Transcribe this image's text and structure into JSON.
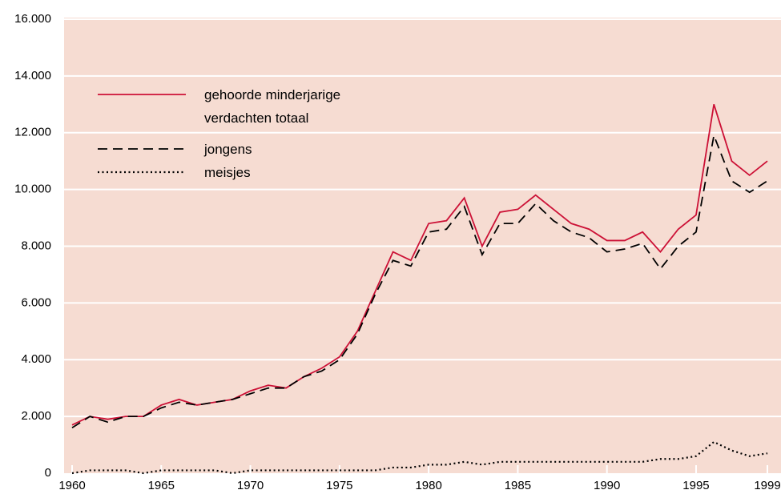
{
  "chart_data": {
    "type": "line",
    "x": [
      1960,
      1961,
      1962,
      1963,
      1964,
      1965,
      1966,
      1967,
      1968,
      1969,
      1970,
      1971,
      1972,
      1973,
      1974,
      1975,
      1976,
      1977,
      1978,
      1979,
      1980,
      1981,
      1982,
      1983,
      1984,
      1985,
      1986,
      1987,
      1988,
      1989,
      1990,
      1991,
      1992,
      1993,
      1994,
      1995,
      1996,
      1997,
      1998,
      1999
    ],
    "series": [
      {
        "name": "gehoorde minderjarige verdachten totaal",
        "color": "#cc1136",
        "dash": "solid",
        "values": [
          1700,
          2000,
          1900,
          2000,
          2000,
          2400,
          2600,
          2400,
          2500,
          2600,
          2900,
          3100,
          3000,
          3400,
          3700,
          4100,
          5000,
          6400,
          7800,
          7500,
          8800,
          8900,
          9700,
          8000,
          9200,
          9300,
          9800,
          9300,
          8800,
          8600,
          8200,
          8200,
          8500,
          7800,
          8600,
          9100,
          13000,
          11000,
          10500,
          11000
        ]
      },
      {
        "name": "jongens",
        "color": "#000000",
        "dash": "dashed",
        "values": [
          1600,
          2000,
          1800,
          2000,
          2000,
          2300,
          2500,
          2400,
          2500,
          2600,
          2800,
          3000,
          3000,
          3400,
          3600,
          4000,
          4900,
          6300,
          7500,
          7300,
          8500,
          8600,
          9400,
          7700,
          8800,
          8800,
          9500,
          8900,
          8500,
          8300,
          7800,
          7900,
          8100,
          7200,
          8000,
          8500,
          11900,
          10300,
          9900,
          10300
        ]
      },
      {
        "name": "meisjes",
        "color": "#000000",
        "dash": "dotted",
        "values": [
          0,
          100,
          100,
          100,
          0,
          100,
          100,
          100,
          100,
          0,
          100,
          100,
          100,
          100,
          100,
          100,
          100,
          100,
          200,
          200,
          300,
          300,
          400,
          300,
          400,
          400,
          400,
          400,
          400,
          400,
          400,
          400,
          400,
          500,
          500,
          600,
          1100,
          800,
          600,
          700
        ]
      }
    ],
    "xlim": [
      1960,
      1999
    ],
    "xticks": [
      1960,
      1965,
      1970,
      1975,
      1980,
      1985,
      1990,
      1995,
      1999
    ],
    "ylim": [
      0,
      16000
    ],
    "yticks": [
      0,
      {
        "value": 2000,
        "label": "2.000"
      },
      {
        "value": 4000,
        "label": "4.000"
      },
      {
        "value": 6000,
        "label": "6.000"
      },
      {
        "value": 8000,
        "label": "8.000"
      },
      {
        "value": 10000,
        "label": "10.000"
      },
      {
        "value": 12000,
        "label": "12.000"
      },
      {
        "value": 14000,
        "label": "14.000"
      },
      {
        "value": 16000,
        "label": "16.000"
      }
    ],
    "grid": true,
    "legend": "top-left"
  }
}
